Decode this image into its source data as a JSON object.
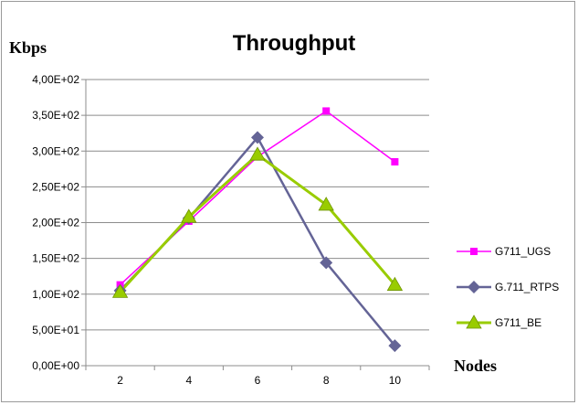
{
  "chart_data": {
    "type": "line",
    "title": "Throughput",
    "ylabel": "Kbps",
    "xlabel": "Nodes",
    "categories": [
      "2",
      "4",
      "6",
      "8",
      "10"
    ],
    "ylim": [
      0,
      400
    ],
    "y_ticks": [
      0,
      50,
      100,
      150,
      200,
      250,
      300,
      350,
      400
    ],
    "y_tick_labels": [
      "0,00E+00",
      "5,00E+01",
      "1,00E+02",
      "1,50E+02",
      "2,00E+02",
      "2,50E+02",
      "3,00E+02",
      "3,50E+02",
      "4,00E+02"
    ],
    "grid": true,
    "legend_position": "right",
    "series": [
      {
        "name": "G711_UGS",
        "values": [
          113,
          202,
          292,
          356,
          285
        ],
        "color": "#ff00ff",
        "marker": "square"
      },
      {
        "name": "G.711_RTPS",
        "values": [
          105,
          206,
          319,
          144,
          28
        ],
        "color": "#646496",
        "marker": "diamond"
      },
      {
        "name": "G711_BE",
        "values": [
          103,
          208,
          295,
          225,
          113
        ],
        "color": "#99cc00",
        "marker": "triangle"
      }
    ]
  }
}
